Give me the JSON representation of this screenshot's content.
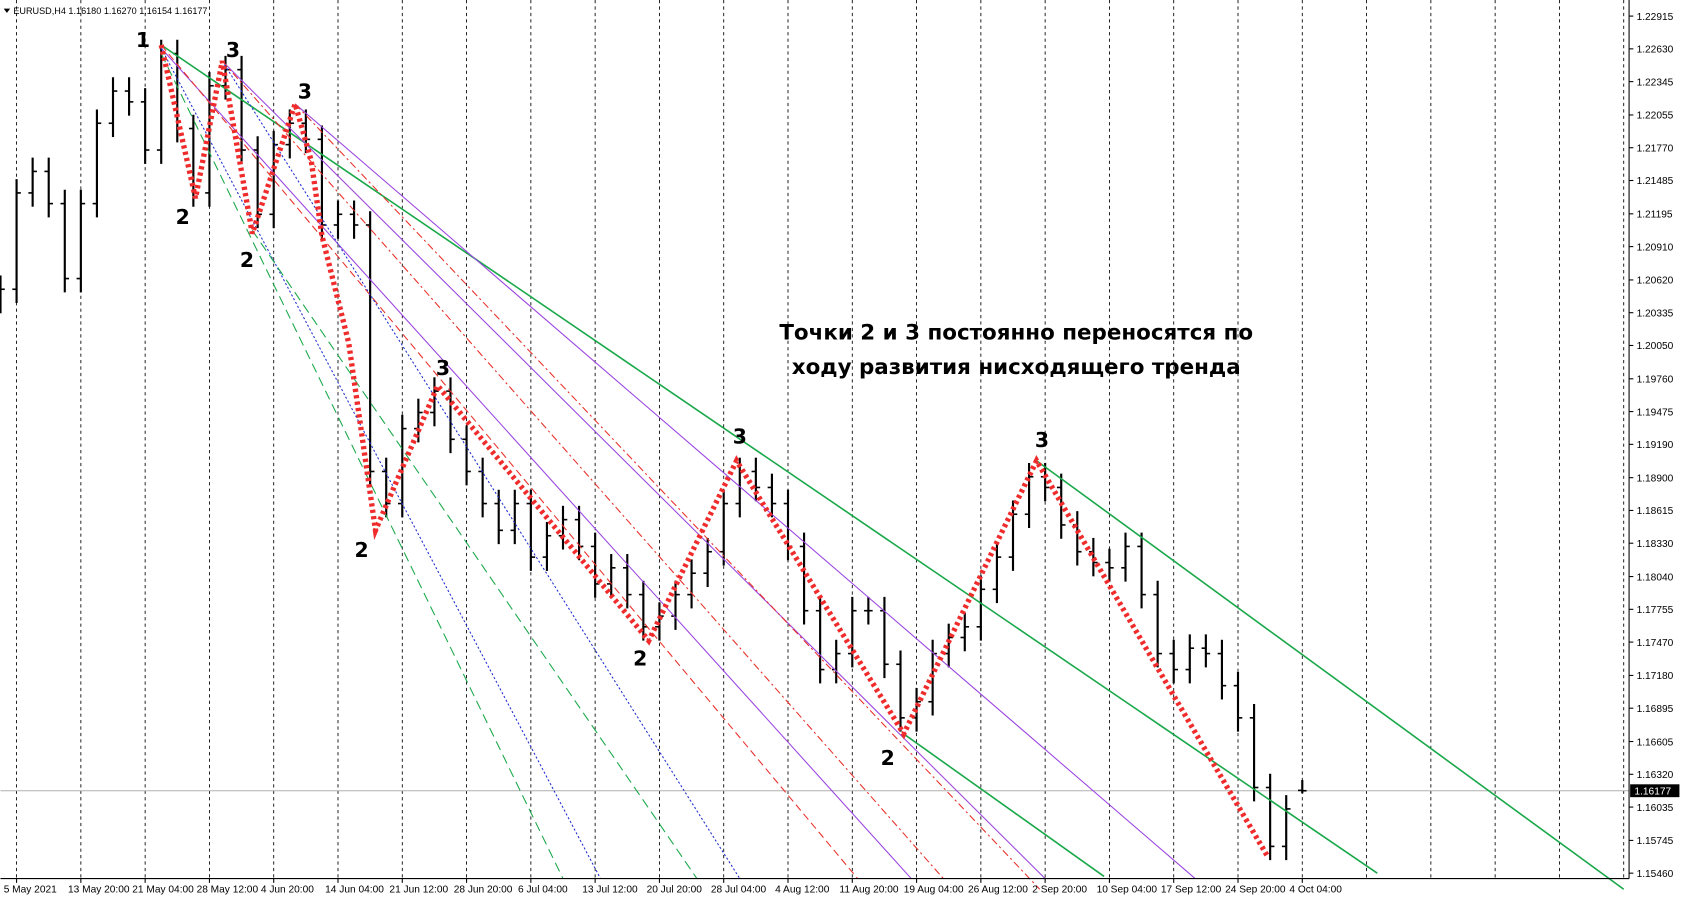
{
  "chart_data": {
    "type": "ohlc",
    "title": "EURUSD,H4  1.16180 1.16270 1.16154 1.16177",
    "color": "#000000",
    "annotation": [
      "Точки 2 и 3 постоянно переносятся по",
      "ходу развития нисходящего тренда"
    ],
    "point_labels": [
      "1",
      "3",
      "2",
      "2",
      "3",
      "2",
      "3",
      "3",
      "2",
      "2",
      "3"
    ],
    "categories": [
      null,
      "5 May 2021",
      null,
      null,
      null,
      "13 May 20:00",
      null,
      null,
      null,
      "21 May 04:00",
      null,
      null,
      null,
      "28 May 12:00",
      null,
      null,
      null,
      "4 Jun 20:00",
      null,
      null,
      null,
      "14 Jun 04:00",
      null,
      null,
      null,
      "21 Jun 12:00",
      null,
      null,
      null,
      "28 Jun 20:00",
      null,
      null,
      null,
      "6 Jul 04:00",
      null,
      null,
      null,
      "13 Jul 12:00",
      null,
      null,
      null,
      "20 Jul 20:00",
      null,
      null,
      null,
      "28 Jul 04:00",
      null,
      null,
      null,
      "4 Aug 12:00",
      null,
      null,
      null,
      "11 Aug 20:00",
      null,
      null,
      null,
      "19 Aug 04:00",
      null,
      null,
      null,
      "26 Aug 12:00",
      null,
      null,
      null,
      "2 Sep 20:00",
      null,
      null,
      null,
      "10 Sep 04:00",
      null,
      null,
      null,
      "17 Sep 12:00",
      null,
      null,
      null,
      "24 Sep 20:00",
      null,
      null,
      null,
      "4 Oct 04:00"
    ],
    "open": [
      1.2045,
      1.20539,
      1.21377,
      1.21564,
      1.21284,
      1.20632,
      1.21284,
      1.21983,
      1.22263,
      1.22169,
      1.2175,
      1.22589,
      1.21937,
      1.21377,
      1.22309,
      1.22449,
      1.2175,
      1.21191,
      1.21797,
      1.21983,
      1.21843,
      1.21098,
      1.21191,
      1.21098,
      1.18954,
      1.18675,
      1.19327,
      1.19467,
      1.19653,
      1.19234,
      1.18954,
      1.18675,
      1.18442,
      1.18675,
      1.18209,
      1.18395,
      1.18535,
      1.18302,
      1.17976,
      1.18116,
      1.17883,
      1.17603,
      1.17696,
      1.17883,
      1.18069,
      1.18256,
      1.18675,
      1.18954,
      1.18815,
      1.18675,
      1.18302,
      1.17743,
      1.17231,
      1.1737,
      1.17743,
      1.17743,
      1.17277,
      1.16811,
      1.16951,
      1.1737,
      1.1751,
      1.17603,
      1.17929,
      1.18209,
      1.18582,
      1.18908,
      1.18815,
      1.18489,
      1.18256,
      1.18162,
      1.18116,
      1.18302,
      1.17883,
      1.1737,
      1.17231,
      1.17417,
      1.1737,
      1.17091,
      1.16811,
      1.16205,
      1.15693,
      1.1618
    ],
    "high": [
      1.20659,
      1.21497,
      1.21684,
      1.21684,
      1.21404,
      1.21404,
      1.22103,
      1.22383,
      1.22383,
      1.22289,
      1.22709,
      1.22709,
      1.22057,
      1.22429,
      1.22569,
      1.22569,
      1.2187,
      1.21917,
      1.22103,
      1.22103,
      1.21963,
      1.21311,
      1.21311,
      1.21218,
      1.19074,
      1.19447,
      1.19587,
      1.19773,
      1.19773,
      1.19354,
      1.19074,
      1.18795,
      1.18795,
      1.18795,
      1.18515,
      1.18655,
      1.18655,
      1.18422,
      1.18236,
      1.18236,
      1.18003,
      1.17816,
      1.18003,
      1.18189,
      1.18376,
      1.18795,
      1.19074,
      1.19074,
      1.18935,
      1.18795,
      1.18422,
      1.17863,
      1.1749,
      1.17863,
      1.17863,
      1.17863,
      1.17397,
      1.17071,
      1.1749,
      1.1763,
      1.17723,
      1.18049,
      1.18329,
      1.18702,
      1.19028,
      1.19028,
      1.18935,
      1.18609,
      1.18376,
      1.18282,
      1.18422,
      1.18422,
      1.18003,
      1.1749,
      1.17537,
      1.17537,
      1.1749,
      1.17211,
      1.16931,
      1.16325,
      1.16139,
      1.1627
    ],
    "low": [
      1.2033,
      1.20419,
      1.21257,
      1.21164,
      1.20512,
      1.20512,
      1.21164,
      1.21863,
      1.22049,
      1.2163,
      1.2163,
      1.21817,
      1.21257,
      1.21257,
      1.22189,
      1.2163,
      1.21071,
      1.21071,
      1.21677,
      1.21723,
      1.20978,
      1.20978,
      1.20978,
      1.18834,
      1.18555,
      1.18555,
      1.19207,
      1.19347,
      1.19114,
      1.18834,
      1.18555,
      1.18322,
      1.18322,
      1.18089,
      1.18089,
      1.18275,
      1.18182,
      1.17856,
      1.17856,
      1.17763,
      1.17483,
      1.17483,
      1.17576,
      1.17763,
      1.17949,
      1.18136,
      1.18555,
      1.18695,
      1.18555,
      1.18182,
      1.17623,
      1.17111,
      1.17111,
      1.1725,
      1.17623,
      1.17157,
      1.16691,
      1.16691,
      1.16831,
      1.1725,
      1.1739,
      1.17483,
      1.17809,
      1.18089,
      1.18462,
      1.18695,
      1.18369,
      1.18136,
      1.18042,
      1.17996,
      1.17996,
      1.17763,
      1.1725,
      1.17111,
      1.17111,
      1.1725,
      1.16971,
      1.16691,
      1.16085,
      1.15573,
      1.15573,
      1.16154
    ],
    "close": [
      1.20539,
      1.21377,
      1.21564,
      1.21284,
      1.20632,
      1.21284,
      1.21983,
      1.22263,
      1.22169,
      1.2175,
      1.22589,
      1.21937,
      1.21377,
      1.22309,
      1.22449,
      1.2175,
      1.21191,
      1.21797,
      1.21983,
      1.21843,
      1.21098,
      1.21191,
      1.21098,
      1.18954,
      1.18675,
      1.19327,
      1.19467,
      1.19653,
      1.19234,
      1.18954,
      1.18675,
      1.18442,
      1.18675,
      1.18209,
      1.18395,
      1.18535,
      1.18302,
      1.17976,
      1.18116,
      1.17883,
      1.17603,
      1.17696,
      1.17883,
      1.18069,
      1.18256,
      1.18675,
      1.18954,
      1.18815,
      1.18675,
      1.18302,
      1.17743,
      1.17231,
      1.1737,
      1.17743,
      1.17743,
      1.17277,
      1.16811,
      1.16951,
      1.1737,
      1.1751,
      1.17603,
      1.17929,
      1.18209,
      1.18582,
      1.18908,
      1.18815,
      1.18489,
      1.18256,
      1.18162,
      1.18116,
      1.18302,
      1.17883,
      1.1737,
      1.17231,
      1.17417,
      1.1737,
      1.17091,
      1.16811,
      1.16205,
      1.15693,
      1.16019,
      1.16177
    ],
    "ylim": [
      1.15413,
      1.23055
    ],
    "yticks": [
      1.22915,
      {
        "value": 1.2263,
        "label": "1.22630"
      },
      1.22345,
      1.22055,
      {
        "value": 1.2177,
        "label": "1.21770"
      },
      1.21485,
      1.21195,
      {
        "value": 1.2091,
        "label": "1.20910"
      },
      {
        "value": 1.2062,
        "label": "1.20620"
      },
      1.20335,
      {
        "value": 1.2005,
        "label": "1.20050"
      },
      {
        "value": 1.1976,
        "label": "1.19760"
      },
      1.19475,
      {
        "value": 1.1919,
        "label": "1.19190"
      },
      {
        "value": 1.189,
        "label": "1.18900"
      },
      1.18615,
      {
        "value": 1.1833,
        "label": "1.18330"
      },
      {
        "value": 1.1804,
        "label": "1.18040"
      },
      1.17755,
      {
        "value": 1.1747,
        "label": "1.17470"
      },
      {
        "value": 1.1718,
        "label": "1.17180"
      },
      1.16895,
      1.16605,
      {
        "value": 1.1632,
        "label": "1.16320"
      },
      1.16035,
      1.15745,
      {
        "value": 1.1546,
        "label": "1.15460"
      }
    ],
    "grid": true
  }
}
